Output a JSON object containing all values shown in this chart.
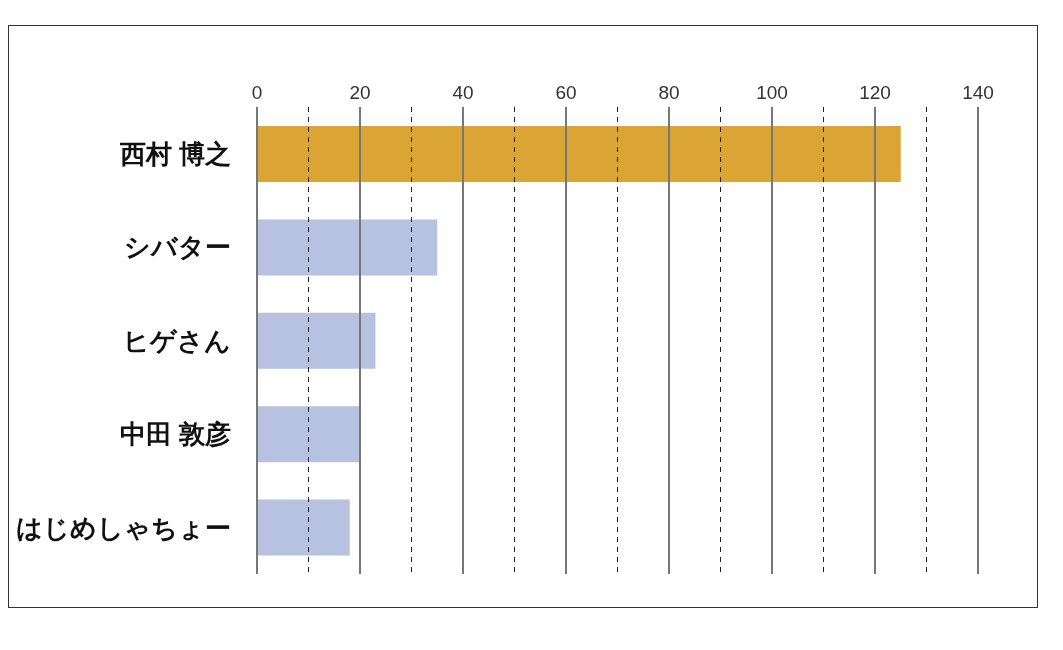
{
  "chart_data": {
    "type": "bar",
    "orientation": "horizontal",
    "categories": [
      "西村 博之",
      "シバター",
      "ヒゲさん",
      "中田 敦彦",
      "はじめしゃちょー"
    ],
    "values": [
      125,
      35,
      23,
      20,
      18
    ],
    "colors": [
      "#dba535",
      "#b6c2e0",
      "#b6c2e0",
      "#b6c2e0",
      "#b6c2e0"
    ],
    "xlim": [
      0,
      140
    ],
    "xticks": [
      0,
      {
        "value": 10,
        "label": null
      },
      20,
      {
        "value": 30,
        "label": null
      },
      40,
      {
        "value": 50,
        "label": null
      },
      60,
      {
        "value": 70,
        "label": null
      },
      80,
      {
        "value": 90,
        "label": null
      },
      100,
      {
        "value": 110,
        "label": null
      },
      120,
      {
        "value": 130,
        "label": null
      },
      140
    ],
    "grid": "x",
    "legend": false
  }
}
